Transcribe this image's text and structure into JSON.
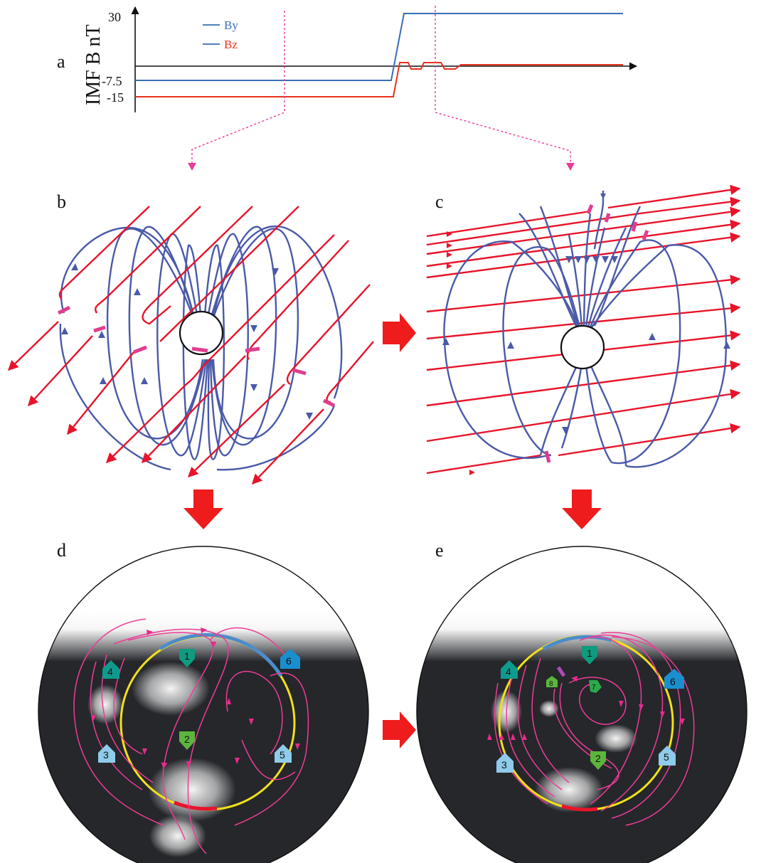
{
  "panel_letters": {
    "a": "a",
    "b": "b",
    "c": "c",
    "d": "d",
    "e": "e"
  },
  "imf_chart": {
    "ylabel": "IMF B nT",
    "ticks": [
      "30",
      "-7.5",
      "-15"
    ],
    "legend": [
      {
        "name": "By",
        "color": "#3a6db5"
      },
      {
        "name": "Bz",
        "color": "#e8321e"
      }
    ]
  },
  "chart_data": {
    "type": "line",
    "ylabel": "IMF B nT",
    "y_ticks": [
      30,
      -7.5,
      -15
    ],
    "series": [
      {
        "name": "By",
        "color": "#3a6db5",
        "description": "constant -7.5 then steps up to 30"
      },
      {
        "name": "Bz",
        "color": "#e8321e",
        "description": "constant -15 then steps up to near 0 with small square fluctuations"
      }
    ]
  },
  "colors": {
    "imf_line": "#e8142a",
    "field_line": "#4a5aa8",
    "reconnection": "#e23c8e",
    "convection": "#ee3c96",
    "auroral_oval": "#f2e01a",
    "oval_dayside": "#4c8ccc",
    "oval_nightside": "#e8142a",
    "night_disk": "#25272b",
    "big_arrow": "#ee1c1c"
  },
  "badges_d": [
    {
      "num": "1",
      "color": "#0e9b7e"
    },
    {
      "num": "2",
      "color": "#5cb53c"
    },
    {
      "num": "3",
      "color": "#8fcbea"
    },
    {
      "num": "4",
      "color": "#0e9b8e"
    },
    {
      "num": "5",
      "color": "#8fcbea"
    },
    {
      "num": "6",
      "color": "#1a8fd0"
    }
  ],
  "badges_e": [
    {
      "num": "1",
      "color": "#0e9b7e"
    },
    {
      "num": "2",
      "color": "#5cb53c"
    },
    {
      "num": "3",
      "color": "#8fcbea"
    },
    {
      "num": "4",
      "color": "#0e9b8e"
    },
    {
      "num": "5",
      "color": "#8fcbea"
    },
    {
      "num": "6",
      "color": "#1a8fd0"
    },
    {
      "num": "7",
      "color": "#2ea84a"
    },
    {
      "num": "8",
      "color": "#5cb53c"
    }
  ]
}
